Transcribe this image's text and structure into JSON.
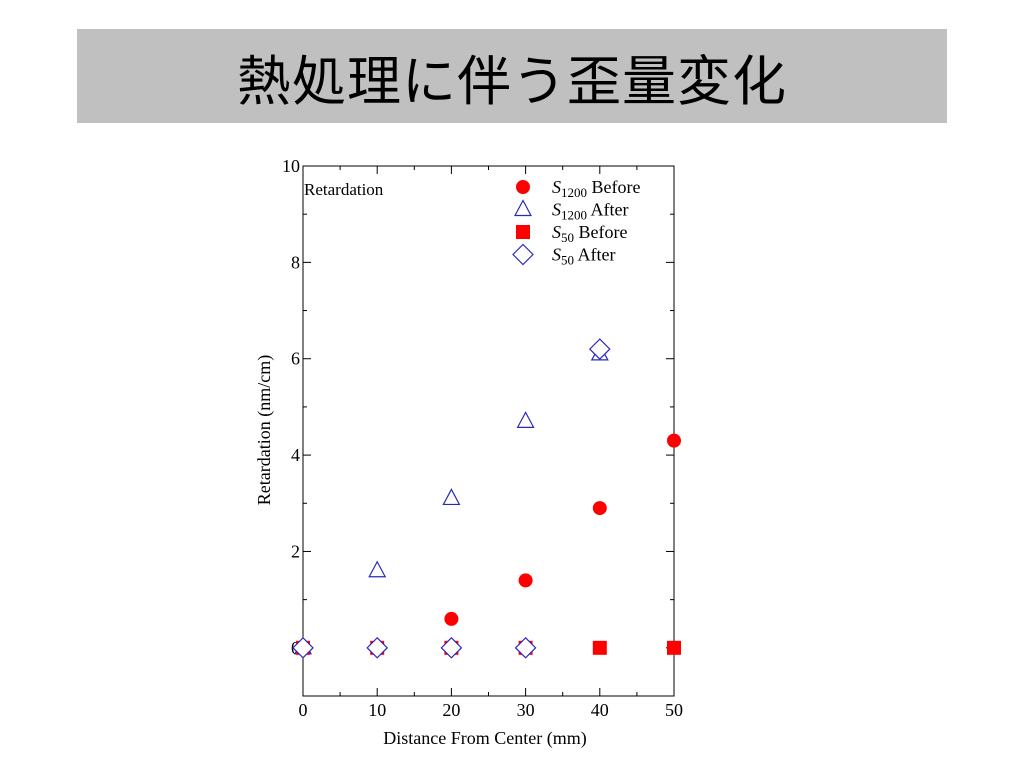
{
  "title": "熱処理に伴う歪量変化",
  "chart_data": {
    "type": "scatter",
    "xlabel": "Distance From Center (mm)",
    "ylabel": "Retardation (nm/cm)",
    "annotation": "Retardation",
    "xlim": [
      0,
      50
    ],
    "ylim": [
      -1,
      10
    ],
    "x_ticks": [
      0,
      10,
      20,
      30,
      40,
      50
    ],
    "y_ticks": [
      0,
      2,
      4,
      6,
      8,
      10
    ],
    "grid": false,
    "legend_position": "top-right",
    "series": [
      {
        "name": "S1200 Before",
        "name_main": "S",
        "name_sub": "1200",
        "name_rest": "Before",
        "marker": "filled-circle",
        "color": "#ff0000",
        "x": [
          0,
          10,
          20,
          30,
          40,
          50
        ],
        "y": [
          0,
          0,
          0.6,
          1.4,
          2.9,
          4.3
        ]
      },
      {
        "name": "S1200 After",
        "name_main": "S",
        "name_sub": "1200",
        "name_rest": "After",
        "marker": "open-triangle",
        "color": "#2a2ab8",
        "x": [
          0,
          10,
          20,
          30,
          40
        ],
        "y": [
          0,
          1.6,
          3.1,
          4.7,
          6.1
        ]
      },
      {
        "name": "S50 Before",
        "name_main": "S",
        "name_sub": "50",
        "name_rest": "Before",
        "marker": "filled-square",
        "color": "#ff0000",
        "x": [
          0,
          10,
          20,
          30,
          40,
          50
        ],
        "y": [
          0,
          0,
          0,
          0,
          0,
          0
        ]
      },
      {
        "name": "S50 After",
        "name_main": "S",
        "name_sub": "50",
        "name_rest": "After",
        "marker": "open-diamond",
        "color": "#2a2ab8",
        "x": [
          0,
          10,
          20,
          30,
          40
        ],
        "y": [
          0,
          0,
          0,
          0,
          6.2
        ]
      }
    ]
  }
}
